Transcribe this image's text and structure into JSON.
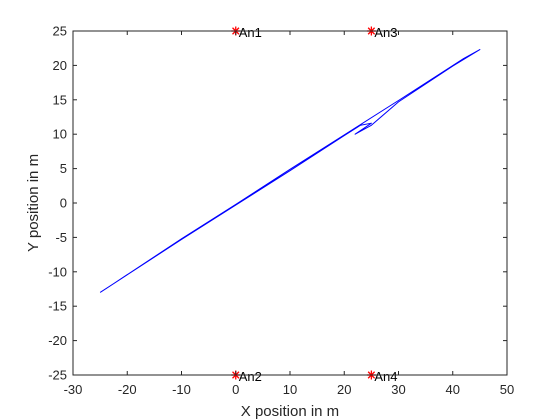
{
  "chart_data": {
    "type": "line",
    "title": "",
    "xlabel": "X position in m",
    "ylabel": "Y position in m",
    "xlim": [
      -30,
      50
    ],
    "ylim": [
      -25,
      25
    ],
    "xticks": [
      -30,
      -20,
      -10,
      0,
      10,
      20,
      30,
      40,
      50
    ],
    "yticks": [
      -25,
      -20,
      -15,
      -10,
      -5,
      0,
      5,
      10,
      15,
      20,
      25
    ],
    "grid": false,
    "legend": "none",
    "series": [
      {
        "type": "line",
        "color": "#0000ff",
        "x": [
          -25,
          -10,
          0,
          10,
          20,
          23,
          25,
          22,
          25,
          30,
          40,
          45,
          42,
          30,
          20,
          10,
          0,
          -10,
          -24
        ],
        "y": [
          -13,
          -5.3,
          -0.3,
          4.7,
          9.8,
          11.3,
          11.6,
          10.0,
          11.3,
          14.7,
          19.9,
          22.3,
          21.0,
          14.9,
          9.9,
          4.9,
          -0.2,
          -5.2,
          -12.5
        ]
      }
    ],
    "anchors": {
      "marker": "asterisk",
      "color": "#ff0000",
      "points": [
        {
          "label": "An1",
          "x": 0,
          "y": 25
        },
        {
          "label": "An3",
          "x": 25,
          "y": 25
        },
        {
          "label": "An2",
          "x": 0,
          "y": -25
        },
        {
          "label": "An4",
          "x": 25,
          "y": -25
        }
      ]
    }
  }
}
